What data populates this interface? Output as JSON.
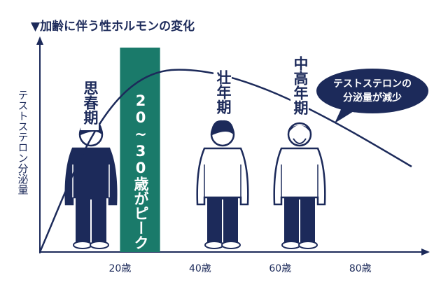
{
  "chart_data": {
    "type": "line",
    "title": "▼加齢に伴う性ホルモンの変化",
    "y_label": "テストステロン分泌量",
    "xlim": [
      0,
      97
    ],
    "xticks": [
      {
        "value": 20,
        "label": "20歳"
      },
      {
        "value": 40,
        "label": "40歳"
      },
      {
        "value": 60,
        "label": "60歳"
      },
      {
        "value": 80,
        "label": "80歳"
      }
    ],
    "highlight": {
      "x": [
        20,
        30
      ],
      "label": "20~30歳がピーク",
      "color": "#1a7a6a"
    },
    "stages": [
      "思春期",
      "壮年期",
      "中高年期"
    ],
    "callout": [
      "テストステロンの",
      "分泌量が減少"
    ],
    "color": "#1c2a5a"
  }
}
